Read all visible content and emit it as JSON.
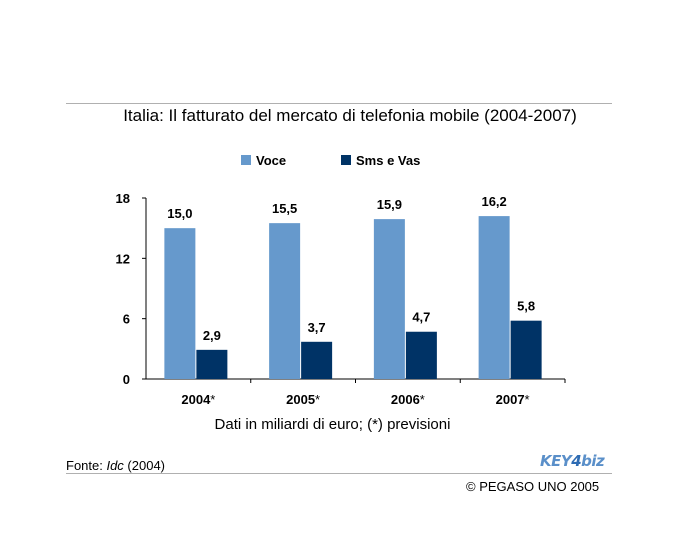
{
  "title": "Italia: Il fatturato del mercato di telefonia mobile (2004-2007)",
  "note": "Dati in miliardi di euro; (*) previsioni",
  "source": {
    "prefix": "Fonte: ",
    "name": "Idc",
    "suffix": " (2004)"
  },
  "copyright": "© PEGASO UNO 2005",
  "logo": {
    "part1": "KEY",
    "part2": "4",
    "part3": "biz"
  },
  "colors": {
    "voce": "#6699cc",
    "sms": "#003366"
  },
  "chart_data": {
    "type": "bar",
    "categories": [
      "2004*",
      "2005*",
      "2006*",
      "2007*"
    ],
    "series": [
      {
        "name": "Voce",
        "values": [
          15.0,
          15.5,
          15.9,
          16.2
        ],
        "labels": [
          "15,0",
          "15,5",
          "15,9",
          "16,2"
        ]
      },
      {
        "name": "Sms e Vas",
        "values": [
          2.9,
          3.7,
          4.7,
          5.8
        ],
        "labels": [
          "2,9",
          "3,7",
          "4,7",
          "5,8"
        ]
      }
    ],
    "yticks": [
      0,
      6,
      12,
      18
    ],
    "ylim": [
      0,
      18
    ],
    "grid": false,
    "legend": "top-center"
  }
}
